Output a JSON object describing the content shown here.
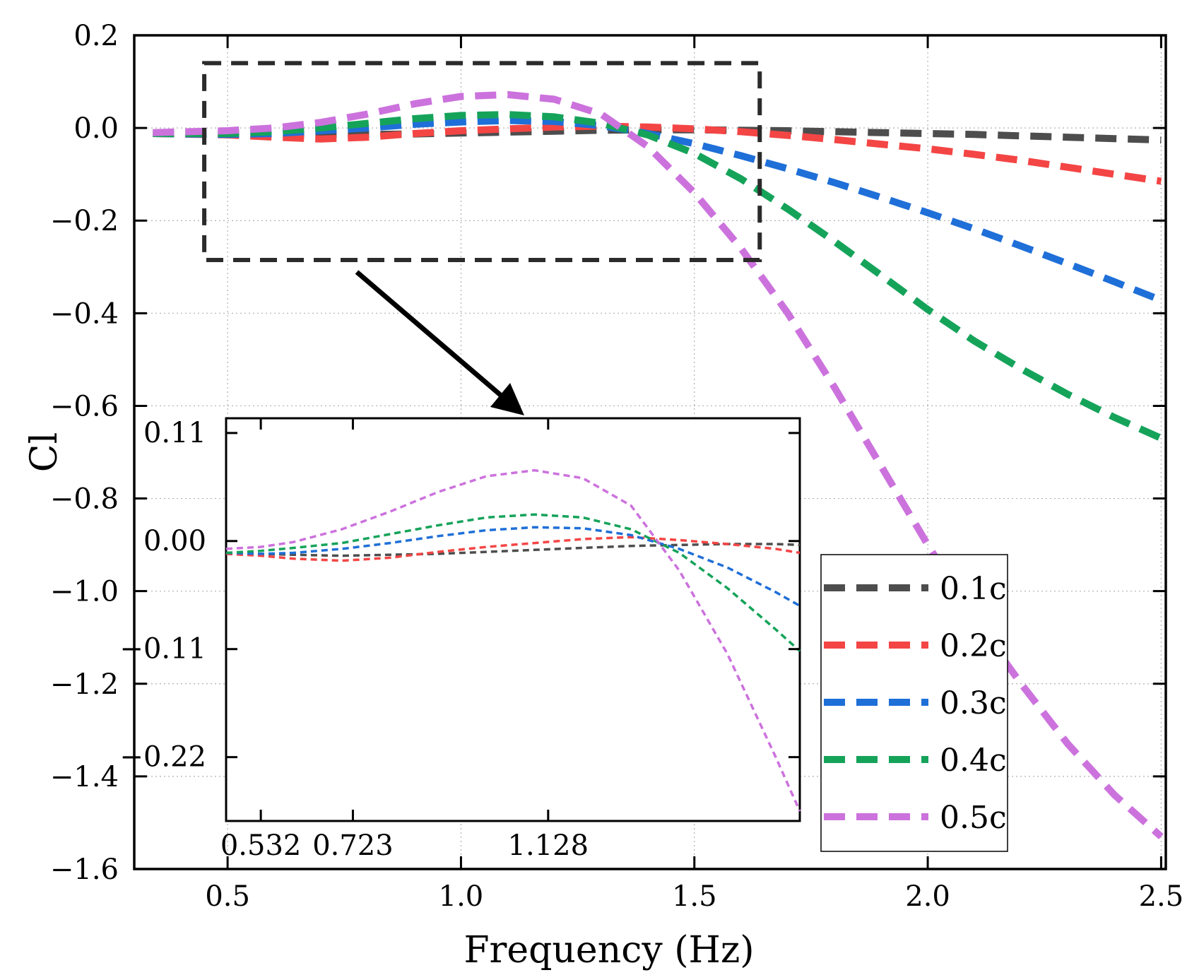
{
  "chart_data": [
    {
      "type": "line",
      "xlabel": "Frequency (Hz)",
      "ylabel": "Cl",
      "xlim": [
        0.3,
        2.51
      ],
      "ylim": [
        -1.6,
        0.2
      ],
      "x_ticks": [
        0.5,
        1.0,
        1.5,
        2.0,
        2.5
      ],
      "x_tick_labels": [
        "0.5",
        "1.0",
        "1.5",
        "2.0",
        "2.5"
      ],
      "y_ticks": [
        0.2,
        0.0,
        -0.2,
        -0.4,
        -0.6,
        -0.8,
        -1.0,
        -1.2,
        -1.4,
        -1.6
      ],
      "y_tick_labels": [
        "0.2",
        "0.0",
        "−0.2",
        "−0.4",
        "−0.6",
        "−0.8",
        "−1.0",
        "−1.2",
        "−1.4",
        "−1.6"
      ],
      "grid": true,
      "legend_position": "lower-right",
      "x": [
        0.34,
        0.5,
        0.6,
        0.7,
        0.8,
        0.9,
        1.0,
        1.1,
        1.2,
        1.3,
        1.4,
        1.5,
        1.6,
        1.7,
        1.8,
        1.9,
        2.0,
        2.1,
        2.2,
        2.3,
        2.4,
        2.5
      ],
      "series": [
        {
          "name": "0.1c",
          "color": "#4d4d4d",
          "values": [
            -0.012,
            -0.013,
            -0.014,
            -0.015,
            -0.014,
            -0.013,
            -0.011,
            -0.009,
            -0.007,
            -0.005,
            -0.004,
            -0.004,
            -0.005,
            -0.006,
            -0.008,
            -0.01,
            -0.012,
            -0.014,
            -0.017,
            -0.02,
            -0.023,
            -0.026
          ]
        },
        {
          "name": "0.2c",
          "color": "#f44545",
          "values": [
            -0.012,
            -0.015,
            -0.02,
            -0.024,
            -0.02,
            -0.012,
            -0.006,
            -0.002,
            0.002,
            0.004,
            0.002,
            -0.002,
            -0.008,
            -0.016,
            -0.025,
            -0.035,
            -0.045,
            -0.057,
            -0.07,
            -0.085,
            -0.1,
            -0.115
          ]
        },
        {
          "name": "0.3c",
          "color": "#1f6fd8",
          "values": [
            -0.012,
            -0.014,
            -0.012,
            -0.006,
            0.0,
            0.008,
            0.013,
            0.016,
            0.014,
            0.005,
            -0.012,
            -0.034,
            -0.06,
            -0.088,
            -0.118,
            -0.15,
            -0.183,
            -0.218,
            -0.255,
            -0.293,
            -0.332,
            -0.372
          ]
        },
        {
          "name": "0.4c",
          "color": "#15a35a",
          "values": [
            -0.012,
            -0.012,
            -0.008,
            0.0,
            0.01,
            0.02,
            0.027,
            0.029,
            0.024,
            0.01,
            -0.015,
            -0.055,
            -0.11,
            -0.175,
            -0.245,
            -0.318,
            -0.392,
            -0.46,
            -0.52,
            -0.575,
            -0.625,
            -0.67
          ]
        },
        {
          "name": "0.5c",
          "color": "#cc72dd",
          "values": [
            -0.01,
            -0.006,
            0.0,
            0.012,
            0.03,
            0.052,
            0.068,
            0.072,
            0.062,
            0.03,
            -0.04,
            -0.14,
            -0.26,
            -0.4,
            -0.56,
            -0.73,
            -0.9,
            -1.06,
            -1.2,
            -1.33,
            -1.44,
            -1.53
          ]
        }
      ],
      "zoom_box": {
        "x_range": [
          0.45,
          1.64
        ],
        "y_range": [
          -0.285,
          0.14
        ]
      }
    },
    {
      "type": "line",
      "x_ticks": [
        0.532,
        0.723,
        1.128
      ],
      "x_tick_labels": [
        "0.532",
        "0.723",
        "1.128"
      ],
      "y_ticks": [
        0.11,
        0.0,
        -0.11,
        -0.22
      ],
      "y_tick_labels": [
        "0.11",
        "0.00",
        "−0.11",
        "−0.22"
      ],
      "xlim": [
        0.46,
        1.65
      ],
      "ylim": [
        -0.285,
        0.125
      ],
      "x": [
        0.46,
        0.532,
        0.6,
        0.7,
        0.8,
        0.9,
        1.0,
        1.1,
        1.2,
        1.3,
        1.4,
        1.5,
        1.6,
        1.65
      ],
      "series": [
        {
          "name": "0.1c",
          "color": "#4d4d4d",
          "values": [
            -0.012,
            -0.013,
            -0.014,
            -0.015,
            -0.014,
            -0.013,
            -0.011,
            -0.009,
            -0.007,
            -0.005,
            -0.004,
            -0.003,
            -0.003,
            -0.004
          ]
        },
        {
          "name": "0.2c",
          "color": "#f44545",
          "values": [
            -0.013,
            -0.015,
            -0.018,
            -0.02,
            -0.017,
            -0.011,
            -0.006,
            -0.002,
            0.002,
            0.004,
            0.001,
            -0.003,
            -0.008,
            -0.012
          ]
        },
        {
          "name": "0.3c",
          "color": "#1f6fd8",
          "values": [
            -0.012,
            -0.013,
            -0.012,
            -0.008,
            -0.002,
            0.005,
            0.011,
            0.014,
            0.013,
            0.006,
            -0.008,
            -0.027,
            -0.052,
            -0.066
          ]
        },
        {
          "name": "0.4c",
          "color": "#15a35a",
          "values": [
            -0.012,
            -0.01,
            -0.007,
            -0.002,
            0.007,
            0.016,
            0.024,
            0.027,
            0.024,
            0.012,
            -0.012,
            -0.048,
            -0.09,
            -0.112
          ]
        },
        {
          "name": "0.5c",
          "color": "#cc72dd",
          "values": [
            -0.008,
            -0.006,
            -0.001,
            0.012,
            0.03,
            0.05,
            0.066,
            0.072,
            0.064,
            0.036,
            -0.03,
            -0.115,
            -0.22,
            -0.275
          ]
        }
      ]
    }
  ]
}
